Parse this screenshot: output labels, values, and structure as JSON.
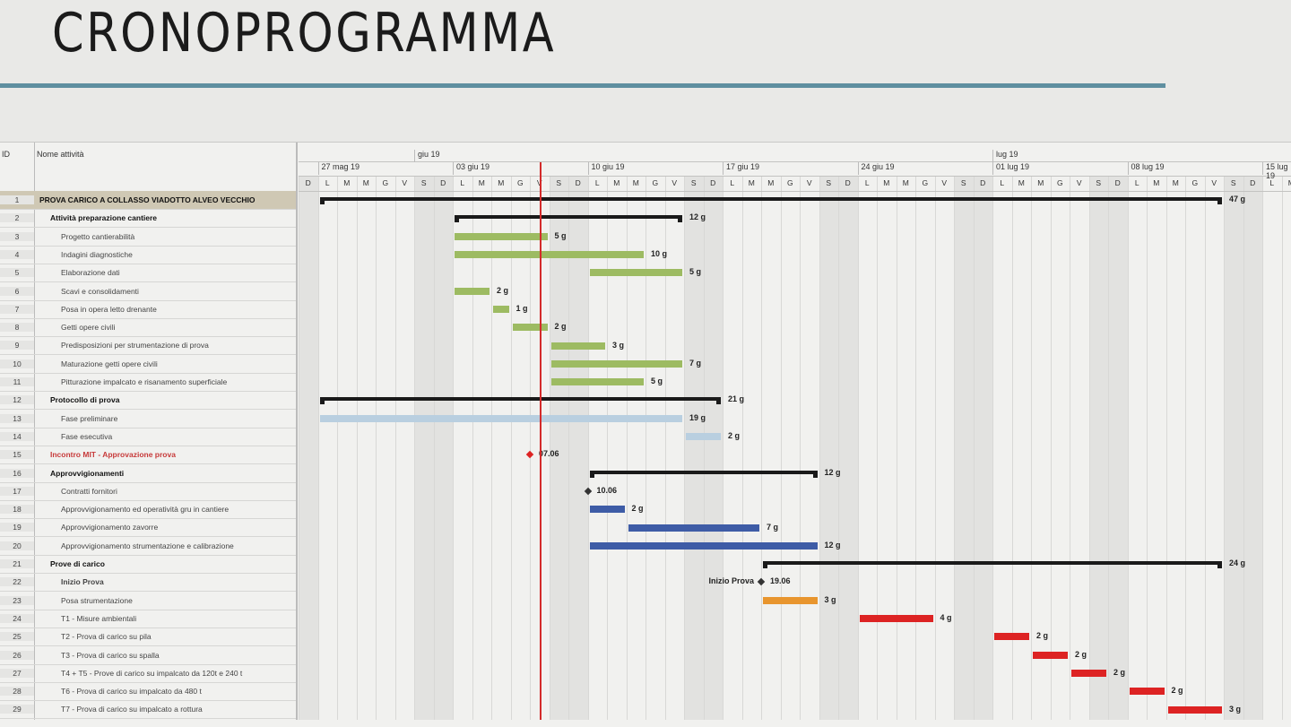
{
  "title": "CRONOPROGRAMMA",
  "table": {
    "id_header": "ID",
    "name_header": "Nome attività"
  },
  "colors": {
    "green": "#9dbb62",
    "light_blue": "#b9cfe0",
    "dark_blue": "#3e5ca6",
    "orange": "#e8952e",
    "red": "#dd2323",
    "summary": "#1a1a1a",
    "today_line": "#d42a2a"
  },
  "chart_data": {
    "type": "gantt",
    "timeline_start": "2019-05-26",
    "timeline_end": "2019-07-16",
    "months": [
      {
        "label": "giu 19",
        "date": "2019-06-01"
      },
      {
        "label": "lug 19",
        "date": "2019-07-01"
      }
    ],
    "weeks": [
      {
        "label": "27 mag 19",
        "date": "2019-05-27"
      },
      {
        "label": "03 giu 19",
        "date": "2019-06-03"
      },
      {
        "label": "10 giu 19",
        "date": "2019-06-10"
      },
      {
        "label": "17 giu 19",
        "date": "2019-06-17"
      },
      {
        "label": "24 giu 19",
        "date": "2019-06-24"
      },
      {
        "label": "01 lug 19",
        "date": "2019-07-01"
      },
      {
        "label": "08 lug 19",
        "date": "2019-07-08"
      },
      {
        "label": "15 lug 19",
        "date": "2019-07-15"
      }
    ],
    "day_letters": [
      "D",
      "L",
      "M",
      "M",
      "G",
      "V",
      "S"
    ],
    "today": "2019-06-07",
    "tasks": [
      {
        "id": "1",
        "name": "PROVA CARICO A COLLASSO VIADOTTO ALVEO VECCHIO",
        "kind": "summary",
        "level": 0,
        "start": "2019-05-27",
        "end": "2019-07-12",
        "duration": "47 g"
      },
      {
        "id": "2",
        "name": "Attività preparazione cantiere",
        "kind": "summary",
        "level": 1,
        "start": "2019-06-03",
        "end": "2019-06-14",
        "duration": "12 g"
      },
      {
        "id": "3",
        "name": "Progetto cantierabilità",
        "kind": "task",
        "level": 2,
        "color": "green",
        "start": "2019-06-03",
        "end": "2019-06-07",
        "duration": "5 g"
      },
      {
        "id": "4",
        "name": "Indagini diagnostiche",
        "kind": "task",
        "level": 2,
        "color": "green",
        "start": "2019-06-03",
        "end": "2019-06-12",
        "duration": "10 g"
      },
      {
        "id": "5",
        "name": "Elaborazione dati",
        "kind": "task",
        "level": 2,
        "color": "green",
        "start": "2019-06-10",
        "end": "2019-06-14",
        "duration": "5 g"
      },
      {
        "id": "6",
        "name": "Scavi e consolidamenti",
        "kind": "task",
        "level": 2,
        "color": "green",
        "start": "2019-06-03",
        "end": "2019-06-04",
        "duration": "2 g"
      },
      {
        "id": "7",
        "name": "Posa in opera letto drenante",
        "kind": "task",
        "level": 2,
        "color": "green",
        "start": "2019-06-05",
        "end": "2019-06-05",
        "duration": "1 g"
      },
      {
        "id": "8",
        "name": "Getti opere civili",
        "kind": "task",
        "level": 2,
        "color": "green",
        "start": "2019-06-06",
        "end": "2019-06-07",
        "duration": "2 g"
      },
      {
        "id": "9",
        "name": "Predisposizioni per strumentazione di prova",
        "kind": "task",
        "level": 2,
        "color": "green",
        "start": "2019-06-08",
        "end": "2019-06-10",
        "duration": "3 g"
      },
      {
        "id": "10",
        "name": "Maturazione getti opere civili",
        "kind": "task",
        "level": 2,
        "color": "green",
        "start": "2019-06-08",
        "end": "2019-06-14",
        "duration": "7 g"
      },
      {
        "id": "11",
        "name": "Pitturazione impalcato e risanamento superficiale",
        "kind": "task",
        "level": 2,
        "color": "green",
        "start": "2019-06-08",
        "end": "2019-06-12",
        "duration": "5 g"
      },
      {
        "id": "12",
        "name": "Protocollo di prova",
        "kind": "summary",
        "level": 1,
        "start": "2019-05-27",
        "end": "2019-06-16",
        "duration": "21 g"
      },
      {
        "id": "13",
        "name": "Fase preliminare",
        "kind": "task",
        "level": 2,
        "color": "light_blue",
        "start": "2019-05-27",
        "end": "2019-06-14",
        "duration": "19 g"
      },
      {
        "id": "14",
        "name": "Fase esecutiva",
        "kind": "task",
        "level": 2,
        "color": "light_blue",
        "start": "2019-06-15",
        "end": "2019-06-16",
        "duration": "2 g"
      },
      {
        "id": "15",
        "name": "Incontro MIT - Approvazione prova",
        "kind": "milestone",
        "level": 1,
        "red": true,
        "start": "2019-06-07",
        "label": "07.06"
      },
      {
        "id": "16",
        "name": "Approvvigionamenti",
        "kind": "summary",
        "level": 1,
        "start": "2019-06-10",
        "end": "2019-06-21",
        "duration": "12 g"
      },
      {
        "id": "17",
        "name": "Contratti fornitori",
        "kind": "milestone",
        "level": 2,
        "start": "2019-06-10",
        "label": "10.06"
      },
      {
        "id": "18",
        "name": "Approvvigionamento ed operatività gru in cantiere",
        "kind": "task",
        "level": 2,
        "color": "dark_blue",
        "start": "2019-06-10",
        "end": "2019-06-11",
        "duration": "2 g"
      },
      {
        "id": "19",
        "name": "Approvvigionamento zavorre",
        "kind": "task",
        "level": 2,
        "color": "dark_blue",
        "start": "2019-06-12",
        "end": "2019-06-18",
        "duration": "7 g"
      },
      {
        "id": "20",
        "name": "Approvvigionamento strumentazione e calibrazione",
        "kind": "task",
        "level": 2,
        "color": "dark_blue",
        "start": "2019-06-10",
        "end": "2019-06-21",
        "duration": "12 g"
      },
      {
        "id": "21",
        "name": "Prove di carico",
        "kind": "summary",
        "level": 1,
        "start": "2019-06-19",
        "end": "2019-07-12",
        "duration": "24 g"
      },
      {
        "id": "22",
        "name": "Inizio Prova",
        "kind": "milestone",
        "level": 2,
        "bold": true,
        "start": "2019-06-19",
        "label": "19.06",
        "left_label": "Inizio Prova"
      },
      {
        "id": "23",
        "name": "Posa strumentazione",
        "kind": "task",
        "level": 2,
        "color": "orange",
        "start": "2019-06-19",
        "end": "2019-06-21",
        "duration": "3 g"
      },
      {
        "id": "24",
        "name": "T1 - Misure ambientali",
        "kind": "task",
        "level": 2,
        "color": "red",
        "start": "2019-06-24",
        "end": "2019-06-27",
        "duration": "4 g"
      },
      {
        "id": "25",
        "name": "T2 - Prova di carico su pila",
        "kind": "task",
        "level": 2,
        "color": "red",
        "start": "2019-07-01",
        "end": "2019-07-02",
        "duration": "2 g"
      },
      {
        "id": "26",
        "name": "T3 - Prova di carico su spalla",
        "kind": "task",
        "level": 2,
        "color": "red",
        "start": "2019-07-03",
        "end": "2019-07-04",
        "duration": "2 g"
      },
      {
        "id": "27",
        "name": "T4 + T5 - Prove di carico su impalcato da 120t e 240 t",
        "kind": "task",
        "level": 2,
        "color": "red",
        "start": "2019-07-05",
        "end": "2019-07-06",
        "duration": "2 g"
      },
      {
        "id": "28",
        "name": "T6 - Prova di carico su impalcato da 480 t",
        "kind": "task",
        "level": 2,
        "color": "red",
        "start": "2019-07-08",
        "end": "2019-07-09",
        "duration": "2 g"
      },
      {
        "id": "29",
        "name": "T7 - Prova di carico su impalcato a rottura",
        "kind": "task",
        "level": 2,
        "color": "red",
        "start": "2019-07-10",
        "end": "2019-07-12",
        "duration": "3 g"
      }
    ]
  }
}
